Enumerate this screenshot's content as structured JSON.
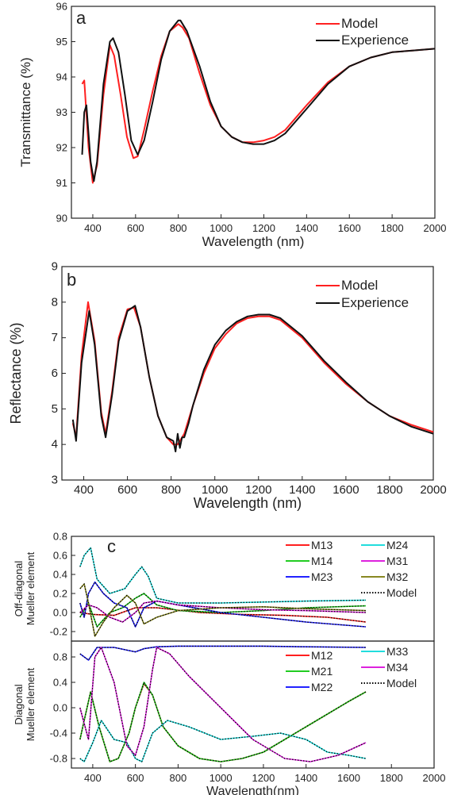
{
  "chart_data": [
    {
      "type": "line",
      "panel_label": "a",
      "xlabel": "Wavelength (nm)",
      "ylabel": "Transmittance (%)",
      "xlim": [
        300,
        2000
      ],
      "ylim": [
        90,
        96
      ],
      "x_ticks": [
        400,
        600,
        800,
        1000,
        1200,
        1400,
        1600,
        1800,
        2000
      ],
      "x_tick_labels": [
        "400",
        "600",
        "800",
        "1000",
        "1200",
        "1400",
        "1600",
        "1800",
        "2000"
      ],
      "y_ticks": [
        90,
        91,
        92,
        93,
        94,
        95,
        96
      ],
      "y_tick_labels": [
        "90",
        "91",
        "92",
        "93",
        "94",
        "95",
        "96"
      ],
      "legend_position": "top-right",
      "series": [
        {
          "name": "Model",
          "color": "#ff2020",
          "style": "solid",
          "x": [
            350,
            360,
            380,
            400,
            420,
            450,
            480,
            500,
            530,
            560,
            590,
            610,
            640,
            680,
            720,
            760,
            800,
            820,
            850,
            900,
            950,
            1000,
            1050,
            1100,
            1150,
            1200,
            1250,
            1300,
            1400,
            1500,
            1600,
            1700,
            1800,
            1900,
            2000
          ],
          "y": [
            93.8,
            93.9,
            92.0,
            91.0,
            91.5,
            93.5,
            94.9,
            94.6,
            93.5,
            92.3,
            91.7,
            91.75,
            92.5,
            93.6,
            94.6,
            95.3,
            95.5,
            95.4,
            95.1,
            94.1,
            93.2,
            92.6,
            92.3,
            92.15,
            92.15,
            92.2,
            92.3,
            92.5,
            93.2,
            93.85,
            94.3,
            94.55,
            94.7,
            94.75,
            94.8
          ]
        },
        {
          "name": "Experience",
          "color": "#111111",
          "style": "solid",
          "x": [
            350,
            360,
            370,
            390,
            405,
            420,
            450,
            480,
            495,
            520,
            550,
            580,
            610,
            640,
            680,
            720,
            760,
            800,
            810,
            840,
            900,
            950,
            1000,
            1050,
            1100,
            1150,
            1200,
            1250,
            1300,
            1400,
            1500,
            1600,
            1700,
            1800,
            1900,
            2000
          ],
          "y": [
            91.8,
            93.0,
            93.2,
            91.6,
            91.05,
            91.6,
            93.8,
            95.0,
            95.1,
            94.7,
            93.5,
            92.2,
            91.8,
            92.2,
            93.3,
            94.5,
            95.3,
            95.6,
            95.6,
            95.3,
            94.3,
            93.3,
            92.6,
            92.3,
            92.15,
            92.1,
            92.1,
            92.2,
            92.4,
            93.1,
            93.8,
            94.3,
            94.55,
            94.7,
            94.75,
            94.8
          ]
        }
      ]
    },
    {
      "type": "line",
      "panel_label": "b",
      "xlabel": "Wavelength (nm)",
      "ylabel": "Reflectance (%)",
      "xlim": [
        300,
        2000
      ],
      "ylim": [
        3,
        9
      ],
      "x_ticks": [
        400,
        600,
        800,
        1000,
        1200,
        1400,
        1600,
        1800,
        2000
      ],
      "x_tick_labels": [
        "400",
        "600",
        "800",
        "1000",
        "1200",
        "1400",
        "1600",
        "1800",
        "2000"
      ],
      "y_ticks": [
        3,
        4,
        5,
        6,
        7,
        8,
        9
      ],
      "y_tick_labels": [
        "3",
        "4",
        "5",
        "6",
        "7",
        "8",
        "9"
      ],
      "legend_position": "top-right",
      "series": [
        {
          "name": "Model",
          "color": "#ff2020",
          "style": "solid",
          "x": [
            350,
            365,
            390,
            420,
            450,
            480,
            500,
            530,
            560,
            600,
            630,
            660,
            700,
            740,
            780,
            810,
            830,
            860,
            900,
            950,
            1000,
            1050,
            1100,
            1150,
            1200,
            1250,
            1300,
            1400,
            1500,
            1600,
            1700,
            1800,
            1900,
            2000
          ],
          "y": [
            4.6,
            4.2,
            6.5,
            8.0,
            6.9,
            4.9,
            4.3,
            5.5,
            7.0,
            7.8,
            7.85,
            7.3,
            5.9,
            4.8,
            4.2,
            4.0,
            4.0,
            4.3,
            5.1,
            6.0,
            6.7,
            7.1,
            7.4,
            7.55,
            7.6,
            7.6,
            7.5,
            7.0,
            6.3,
            5.7,
            5.2,
            4.8,
            4.55,
            4.35
          ]
        },
        {
          "name": "Experience",
          "color": "#111111",
          "style": "solid",
          "x": [
            350,
            365,
            390,
            425,
            450,
            480,
            500,
            530,
            560,
            600,
            635,
            660,
            700,
            740,
            780,
            810,
            820,
            830,
            840,
            850,
            860,
            880,
            900,
            950,
            1000,
            1050,
            1100,
            1150,
            1200,
            1250,
            1300,
            1400,
            1500,
            1600,
            1700,
            1800,
            1900,
            2000
          ],
          "y": [
            4.7,
            4.1,
            6.3,
            7.75,
            6.8,
            4.8,
            4.2,
            5.4,
            6.9,
            7.75,
            7.9,
            7.3,
            5.9,
            4.8,
            4.2,
            4.1,
            3.8,
            4.3,
            3.9,
            4.2,
            4.2,
            4.6,
            5.1,
            6.1,
            6.8,
            7.2,
            7.45,
            7.6,
            7.65,
            7.65,
            7.55,
            7.05,
            6.35,
            5.75,
            5.2,
            4.8,
            4.5,
            4.3
          ]
        }
      ]
    },
    {
      "type": "line",
      "panel_label": "c",
      "subpanel": "off-diagonal",
      "xlim": [
        300,
        2000
      ],
      "ylim": [
        -0.3,
        0.8
      ],
      "ylabel_lines": [
        "Off-diagonal",
        "Mueller element"
      ],
      "y_ticks": [
        -0.2,
        0.0,
        0.2,
        0.4,
        0.6,
        0.8
      ],
      "y_tick_labels": [
        "-0.2",
        "0.0",
        "0.2",
        "0.4",
        "0.6",
        "0.8"
      ],
      "legend_position": "top-right",
      "series": [
        {
          "name": "M13",
          "color": "#ff2020",
          "x": [
            340,
            400,
            500,
            600,
            700,
            900,
            1100,
            1300,
            1500,
            1680
          ],
          "y": [
            0.0,
            -0.02,
            -0.03,
            0.05,
            0.05,
            0.0,
            -0.02,
            -0.03,
            -0.05,
            -0.1
          ]
        },
        {
          "name": "M14",
          "color": "#22cc22",
          "x": [
            340,
            380,
            420,
            480,
            540,
            600,
            640,
            700,
            800,
            1000,
            1200,
            1400,
            1680
          ],
          "y": [
            -0.05,
            0.1,
            -0.15,
            0.0,
            0.05,
            0.15,
            0.2,
            0.08,
            0.02,
            0.0,
            0.02,
            0.05,
            0.07
          ]
        },
        {
          "name": "M23",
          "color": "#2222ff",
          "x": [
            340,
            360,
            380,
            410,
            450,
            500,
            560,
            600,
            640,
            700,
            800,
            1000,
            1200,
            1400,
            1680
          ],
          "y": [
            0.1,
            -0.05,
            0.2,
            0.32,
            0.2,
            0.1,
            0.05,
            -0.15,
            0.05,
            0.12,
            0.08,
            0.0,
            -0.05,
            -0.1,
            -0.15
          ]
        },
        {
          "name": "M24",
          "color": "#22dddd",
          "x": [
            340,
            360,
            390,
            420,
            480,
            550,
            600,
            630,
            660,
            700,
            800,
            1000,
            1200,
            1400,
            1680
          ],
          "y": [
            0.48,
            0.6,
            0.68,
            0.35,
            0.2,
            0.25,
            0.4,
            0.48,
            0.38,
            0.15,
            0.1,
            0.1,
            0.11,
            0.12,
            0.13
          ]
        },
        {
          "name": "M31",
          "color": "#dd22dd",
          "x": [
            340,
            380,
            420,
            480,
            540,
            600,
            640,
            700,
            800,
            1000,
            1200,
            1400,
            1680
          ],
          "y": [
            0.0,
            0.08,
            0.05,
            -0.05,
            -0.1,
            0.0,
            0.1,
            0.12,
            0.08,
            0.05,
            0.03,
            0.02,
            0.0
          ]
        },
        {
          "name": "M32",
          "color": "#888822",
          "x": [
            340,
            360,
            380,
            410,
            450,
            500,
            560,
            600,
            640,
            700,
            800,
            1000,
            1200,
            1400,
            1680
          ],
          "y": [
            0.25,
            0.3,
            0.1,
            -0.25,
            -0.1,
            0.05,
            0.18,
            0.1,
            -0.12,
            -0.05,
            0.02,
            0.05,
            0.06,
            0.04,
            0.02
          ]
        }
      ]
    },
    {
      "type": "line",
      "panel_label": "",
      "subpanel": "diagonal",
      "xlabel": "Wavelength(nm)",
      "xlim": [
        300,
        2000
      ],
      "ylim": [
        -0.95,
        1.05
      ],
      "ylabel_lines": [
        "Diagonal",
        "Mueller element"
      ],
      "x_ticks": [
        400,
        600,
        800,
        1000,
        1200,
        1400,
        1600,
        1800,
        2000
      ],
      "x_tick_labels": [
        "400",
        "600",
        "800",
        "1000",
        "1200",
        "1400",
        "1600",
        "1800",
        "2000"
      ],
      "y_ticks": [
        -0.8,
        -0.4,
        0.0,
        0.4,
        0.8
      ],
      "y_tick_labels": [
        "-0.8",
        "-0.4",
        "0.0",
        "0.4",
        "0.8"
      ],
      "legend_position": "top-right",
      "series": [
        {
          "name": "M12",
          "color": "#ff2020",
          "x": [
            340,
            360,
            390,
            430,
            480,
            520,
            570,
            600,
            640,
            680,
            730,
            800,
            900,
            1000,
            1100,
            1200,
            1300,
            1400,
            1500,
            1600,
            1680
          ],
          "y": [
            -0.5,
            -0.2,
            0.25,
            -0.3,
            -0.85,
            -0.8,
            -0.4,
            0.0,
            0.38,
            0.2,
            -0.3,
            -0.6,
            -0.8,
            -0.85,
            -0.8,
            -0.7,
            -0.5,
            -0.3,
            -0.1,
            0.1,
            0.25
          ]
        },
        {
          "name": "M21",
          "color": "#22cc22",
          "x": [
            340,
            360,
            390,
            430,
            480,
            520,
            570,
            600,
            640,
            680,
            730,
            800,
            900,
            1000,
            1100,
            1200,
            1300,
            1400,
            1500,
            1600,
            1680
          ],
          "y": [
            -0.5,
            -0.2,
            0.25,
            -0.3,
            -0.85,
            -0.8,
            -0.4,
            0.0,
            0.4,
            0.2,
            -0.3,
            -0.6,
            -0.8,
            -0.85,
            -0.8,
            -0.7,
            -0.5,
            -0.3,
            -0.1,
            0.1,
            0.25
          ]
        },
        {
          "name": "M22",
          "color": "#2222ff",
          "x": [
            340,
            380,
            420,
            500,
            600,
            640,
            700,
            800,
            1000,
            1200,
            1400,
            1680
          ],
          "y": [
            0.85,
            0.75,
            0.95,
            0.95,
            0.88,
            0.93,
            0.96,
            0.97,
            0.97,
            0.97,
            0.96,
            0.95
          ]
        },
        {
          "name": "M33",
          "color": "#22dddd",
          "x": [
            340,
            360,
            400,
            440,
            500,
            560,
            600,
            630,
            680,
            750,
            850,
            1000,
            1150,
            1280,
            1400,
            1500,
            1600,
            1680
          ],
          "y": [
            -0.8,
            -0.85,
            -0.55,
            -0.2,
            -0.5,
            -0.55,
            -0.8,
            -0.85,
            -0.4,
            -0.2,
            -0.3,
            -0.5,
            -0.45,
            -0.4,
            -0.5,
            -0.7,
            -0.75,
            -0.8
          ]
        },
        {
          "name": "M34",
          "color": "#dd22dd",
          "x": [
            340,
            380,
            410,
            440,
            500,
            560,
            600,
            640,
            680,
            700,
            760,
            850,
            1000,
            1150,
            1300,
            1420,
            1550,
            1680
          ],
          "y": [
            0.0,
            -0.5,
            0.8,
            0.95,
            0.4,
            -0.6,
            -0.75,
            -0.3,
            0.6,
            0.95,
            0.85,
            0.5,
            0.0,
            -0.5,
            -0.8,
            -0.85,
            -0.75,
            -0.55
          ]
        }
      ]
    }
  ],
  "legends": {
    "a": [
      "Model",
      "Experience"
    ],
    "b": [
      "Model",
      "Experience"
    ],
    "c_off_left": [
      "M13",
      "M14",
      "M23"
    ],
    "c_off_right": [
      "M24",
      "M31",
      "M32",
      "Model"
    ],
    "c_diag_left": [
      "M12",
      "M21",
      "M22"
    ],
    "c_diag_right": [
      "M33",
      "M34",
      "Model"
    ]
  },
  "model_line_style": "dotted"
}
